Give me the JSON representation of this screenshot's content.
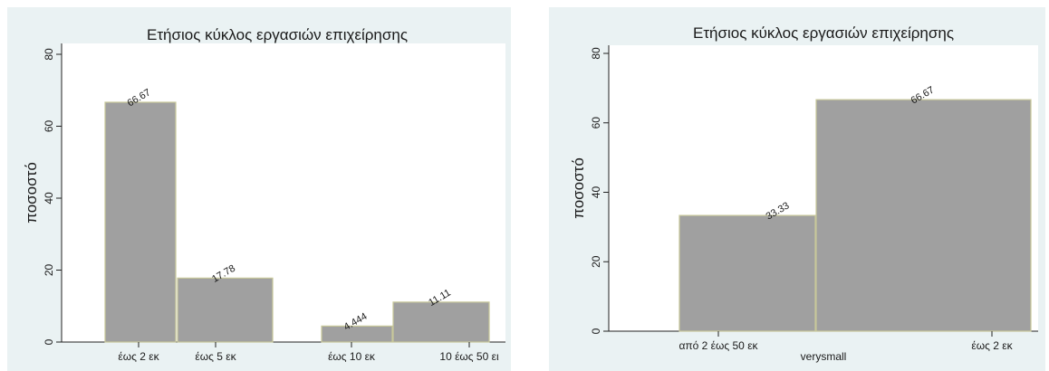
{
  "chart_data": [
    {
      "type": "bar",
      "title": "Ετήσιος κύκλος εργασιών επιχείρησης",
      "ylabel": "ποσοστό",
      "xlabel": "",
      "ylim": [
        0,
        80
      ],
      "yticks": [
        "0",
        "20",
        "40",
        "60",
        "80"
      ],
      "categories": [
        "έως 2 εκ",
        "έως 5 εκ",
        "έως 10 εκ",
        "10 έως 50 εκ"
      ],
      "tick_labels": [
        "έως 2 εκ",
        "έως 5 εκ",
        "έως 10 εκ",
        "10 έως 50 ει"
      ],
      "values": [
        66.67,
        17.78,
        4.444,
        11.11
      ],
      "value_labels": [
        "66.67",
        "17.78",
        "4.444",
        "11.11"
      ],
      "bar_color": "#a0a0a0",
      "bar_edge_color": "#c8c89a"
    },
    {
      "type": "bar",
      "title": "Ετήσιος κύκλος εργασιών επιχείρησης",
      "ylabel": "ποσοστό",
      "xlabel": "verysmall",
      "ylim": [
        0,
        80
      ],
      "yticks": [
        "0",
        "20",
        "40",
        "60",
        "80"
      ],
      "categories": [
        "από 2 έως 50 εκ",
        "έως 2 εκ"
      ],
      "tick_labels": [
        "από 2 έως 50 εκ",
        "έως 2 εκ"
      ],
      "values": [
        33.33,
        66.67
      ],
      "value_labels": [
        "33.33",
        "66.67"
      ],
      "bar_color": "#a0a0a0",
      "bar_edge_color": "#c8c89a"
    }
  ]
}
